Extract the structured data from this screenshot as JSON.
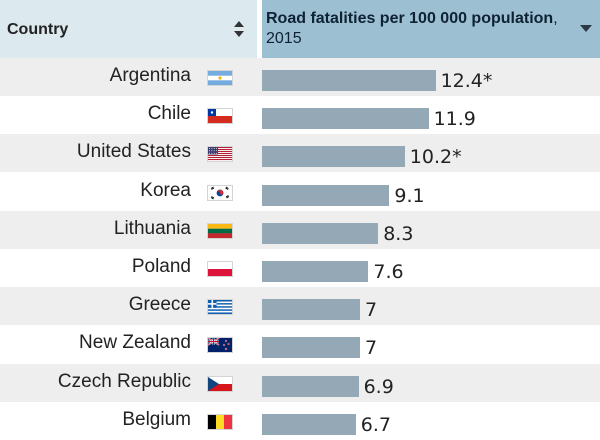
{
  "header": {
    "country_label": "Country",
    "metric_title": "Road fatalities per 100 000 population",
    "metric_year": ", 2015"
  },
  "chart_data": {
    "type": "bar",
    "xlabel": "",
    "ylabel": "Road fatalities per 100 000 population, 2015",
    "categories": [
      "Argentina",
      "Chile",
      "United States",
      "Korea",
      "Lithuania",
      "Poland",
      "Greece",
      "New Zealand",
      "Czech Republic",
      "Belgium"
    ],
    "values": [
      12.4,
      11.9,
      10.2,
      9.1,
      8.3,
      7.6,
      7,
      7,
      6.9,
      6.7
    ]
  },
  "rows": [
    {
      "country": "Argentina",
      "value": 12.4,
      "label": "12.4*",
      "flag_icon": "flag-argentina-icon"
    },
    {
      "country": "Chile",
      "value": 11.9,
      "label": "11.9",
      "flag_icon": "flag-chile-icon"
    },
    {
      "country": "United States",
      "value": 10.2,
      "label": "10.2*",
      "flag_icon": "flag-united-states-icon"
    },
    {
      "country": "Korea",
      "value": 9.1,
      "label": "9.1",
      "flag_icon": "flag-korea-icon"
    },
    {
      "country": "Lithuania",
      "value": 8.3,
      "label": "8.3",
      "flag_icon": "flag-lithuania-icon"
    },
    {
      "country": "Poland",
      "value": 7.6,
      "label": "7.6",
      "flag_icon": "flag-poland-icon"
    },
    {
      "country": "Greece",
      "value": 7,
      "label": "7",
      "flag_icon": "flag-greece-icon"
    },
    {
      "country": "New Zealand",
      "value": 7,
      "label": "7",
      "flag_icon": "flag-new-zealand-icon"
    },
    {
      "country": "Czech Republic",
      "value": 6.9,
      "label": "6.9",
      "flag_icon": "flag-czech-republic-icon"
    },
    {
      "country": "Belgium",
      "value": 6.7,
      "label": "6.7",
      "flag_icon": "flag-belgium-icon"
    }
  ],
  "colors": {
    "bar": "#94a9b5",
    "header_metric_bg": "#9cbfd2",
    "header_country_bg": "#dce9ee",
    "row_alt_bg": "#eeeeee"
  }
}
